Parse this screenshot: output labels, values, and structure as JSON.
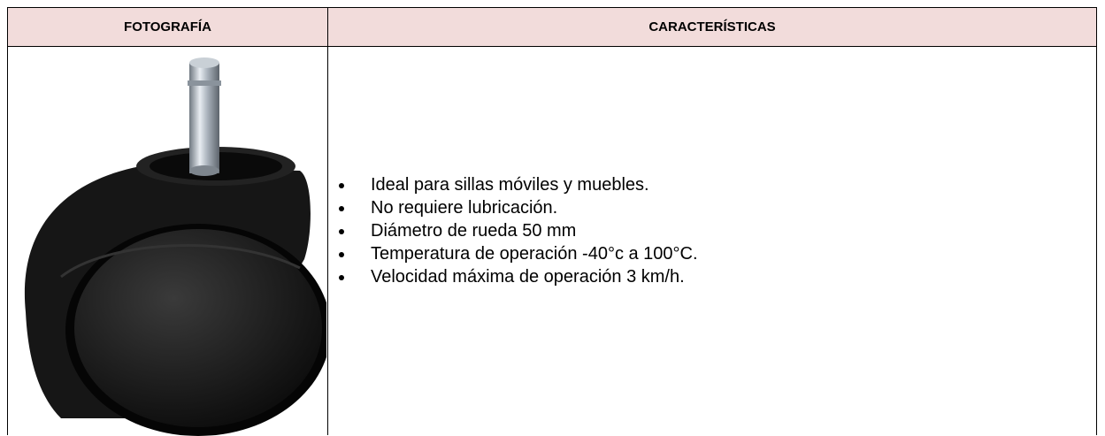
{
  "table": {
    "headers": [
      "FOTOGRAFÍA",
      "CARACTERÍSTICAS"
    ],
    "features": [
      "Ideal para sillas móviles y muebles.",
      "No requiere lubricación.",
      "Diámetro de rueda 50 mm",
      "Temperatura de operación -40°c a 100°C.",
      "Velocidad máxima de operación 3 km/h."
    ]
  }
}
